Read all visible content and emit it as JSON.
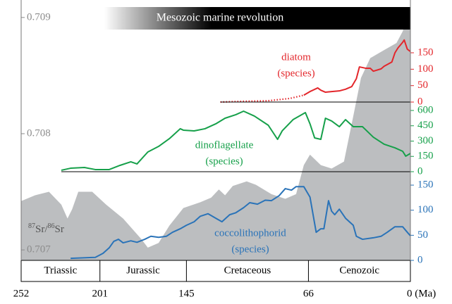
{
  "banner": "Mesozoic marine revolution",
  "x_axis": {
    "xlim": [
      252,
      0
    ],
    "xticks": [
      252,
      201,
      145,
      66,
      {
        "value": 0,
        "label": "0 (Ma)"
      }
    ],
    "periods": [
      "Triassic",
      "Jurassic",
      "Cretaceous",
      "Cenozoic"
    ]
  },
  "chart_data": [
    {
      "type": "area",
      "color": "#bcbec0",
      "tick_color": "#8c8c8c",
      "axis": "left",
      "label_parts": [
        {
          "sup": "87"
        },
        {
          "text": "Sr/"
        },
        {
          "sup": "86"
        },
        {
          "text": "Sr"
        }
      ],
      "ylim": [
        0.70691,
        0.70912
      ],
      "yticks": [
        0.707,
        0.708,
        0.709
      ],
      "x": [
        252,
        243,
        234,
        226,
        222,
        219,
        215,
        206,
        197,
        186,
        174,
        170,
        163,
        156,
        147,
        136,
        129,
        124,
        120,
        115,
        106,
        100,
        90,
        81,
        74,
        69,
        65,
        58,
        51,
        43,
        37,
        32,
        26,
        17,
        9,
        5,
        0
      ],
      "values": [
        0.70742,
        0.70747,
        0.7075,
        0.70739,
        0.70727,
        0.70735,
        0.7075,
        0.7075,
        0.70739,
        0.70727,
        0.70709,
        0.70702,
        0.70706,
        0.70721,
        0.70736,
        0.70741,
        0.70745,
        0.70752,
        0.70747,
        0.70755,
        0.70759,
        0.70756,
        0.70748,
        0.70744,
        0.70748,
        0.70773,
        0.70782,
        0.70773,
        0.7077,
        0.70776,
        0.70815,
        0.70848,
        0.70865,
        0.70872,
        0.70878,
        0.70888,
        0.70909
      ]
    },
    {
      "type": "line",
      "color": "#e3262b",
      "axis": "right",
      "zero_line": true,
      "label": [
        "diatom",
        "(species)"
      ],
      "ylim": [
        -482,
        300
      ],
      "yticks": [
        0,
        50,
        100,
        150
      ],
      "series": [
        {
          "dash": "dotted",
          "x": [
            123,
            110,
            92,
            78,
            69
          ],
          "values": [
            0,
            2,
            4,
            11,
            21
          ]
        },
        {
          "x": [
            69,
            65,
            60,
            58,
            55,
            51,
            46,
            42,
            38,
            35,
            33,
            29,
            26,
            24,
            19,
            17,
            12,
            10,
            8,
            5,
            4,
            2,
            0
          ],
          "values": [
            21,
            32,
            43,
            36,
            30,
            32,
            34,
            39,
            47,
            71,
            107,
            103,
            103,
            94,
            101,
            109,
            122,
            150,
            165,
            182,
            189,
            161,
            154
          ]
        }
      ]
    },
    {
      "type": "line",
      "color": "#16a04a",
      "axis": "right",
      "zero_line": true,
      "label": [
        "dinoflagellate",
        "(species)"
      ],
      "ylim": [
        -869,
        1648
      ],
      "yticks": [
        0,
        150,
        300,
        450,
        600
      ],
      "series": [
        {
          "x": [
            226,
            220,
            211,
            204,
            195,
            188,
            181,
            177,
            170,
            163,
            156,
            149,
            147,
            140,
            133,
            126,
            120,
            113,
            108,
            101,
            92,
            86,
            83,
            76,
            68,
            65,
            62,
            58,
            55,
            51,
            46,
            42,
            37,
            31,
            24,
            17,
            10,
            5,
            3,
            0
          ],
          "values": [
            14,
            34,
            41,
            21,
            21,
            62,
            97,
            76,
            193,
            248,
            324,
            421,
            407,
            400,
            421,
            469,
            524,
            559,
            593,
            545,
            455,
            317,
            400,
            510,
            579,
            469,
            331,
            317,
            524,
            497,
            441,
            510,
            441,
            441,
            338,
            269,
            234,
            200,
            152,
            179
          ]
        }
      ]
    },
    {
      "type": "line",
      "color": "#2a73b8",
      "axis": "right",
      "label": [
        "coccolithophorid",
        "(species)"
      ],
      "ylim": [
        0,
        512
      ],
      "yticks": [
        0,
        50,
        100,
        150
      ],
      "series": [
        {
          "x": [
            220,
            204,
            199,
            195,
            192,
            189,
            186,
            181,
            177,
            172,
            168,
            163,
            158,
            154,
            149,
            145,
            140,
            136,
            131,
            126,
            122,
            117,
            113,
            108,
            104,
            99,
            94,
            90,
            85,
            81,
            77,
            74,
            69,
            65,
            61,
            58,
            56,
            53,
            51,
            49,
            46,
            42,
            37,
            35,
            31,
            24,
            19,
            15,
            10,
            5,
            2,
            0
          ],
          "values": [
            4,
            6,
            14,
            25,
            38,
            42,
            35,
            39,
            36,
            42,
            48,
            46,
            48,
            56,
            63,
            70,
            77,
            88,
            93,
            84,
            77,
            91,
            95,
            105,
            115,
            112,
            120,
            119,
            129,
            143,
            140,
            147,
            147,
            126,
            56,
            63,
            63,
            119,
            98,
            91,
            102,
            84,
            70,
            48,
            42,
            45,
            48,
            56,
            67,
            67,
            56,
            49
          ]
        }
      ]
    }
  ]
}
